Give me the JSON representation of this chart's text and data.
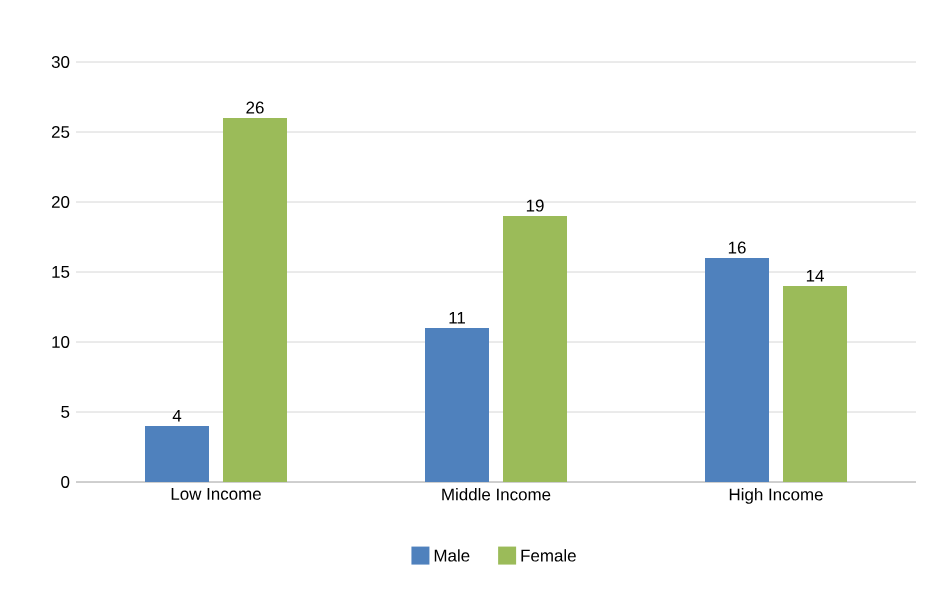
{
  "chart_data": {
    "type": "bar",
    "categories": [
      "Low Income",
      "Middle Income",
      "High Income"
    ],
    "series": [
      {
        "name": "Male",
        "color": "#4f81bd",
        "values": [
          4,
          11,
          16
        ]
      },
      {
        "name": "Female",
        "color": "#9bbb59",
        "values": [
          26,
          19,
          14
        ]
      }
    ],
    "ylim": [
      0,
      30
    ],
    "yticks": [
      0,
      5,
      10,
      15,
      20,
      25,
      30
    ],
    "grid": "y",
    "legend": "bottom",
    "data_labels": true
  }
}
